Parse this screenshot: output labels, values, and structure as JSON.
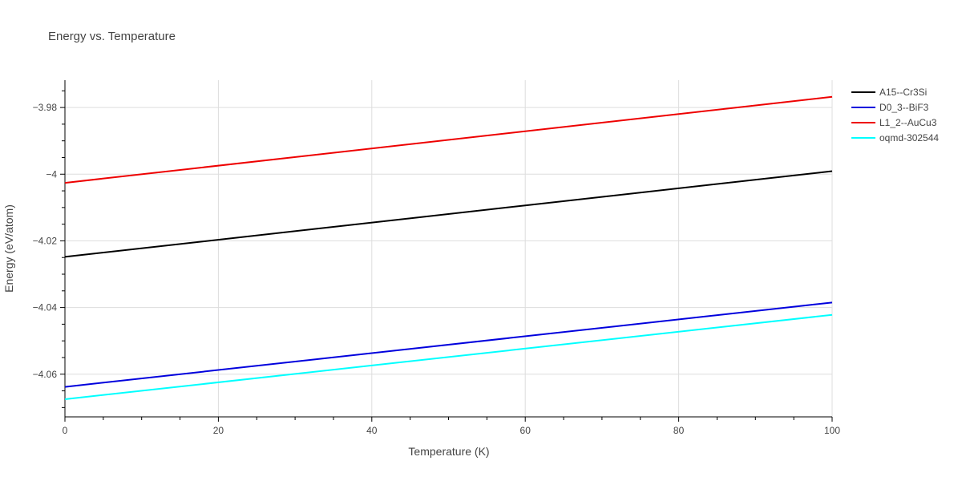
{
  "chart_data": {
    "type": "line",
    "title": "Energy vs. Temperature",
    "xlabel": "Temperature (K)",
    "ylabel": "Energy (eV/atom)",
    "xlim": [
      0,
      100
    ],
    "ylim": [
      -4.0728,
      -3.9718
    ],
    "x_ticks": [
      0,
      20,
      40,
      60,
      80,
      100
    ],
    "x_tick_labels": [
      "0",
      "20",
      "40",
      "60",
      "80",
      "100"
    ],
    "y_ticks": [
      -3.98,
      -4.0,
      -4.02,
      -4.04,
      -4.06
    ],
    "y_tick_labels": [
      "−3.98",
      "−4",
      "−4.02",
      "−4.04",
      "−4.06"
    ],
    "grid": true,
    "legend_position": "top-right",
    "series": [
      {
        "name": "A15--Cr3Si",
        "color": "#000000",
        "x": [
          0,
          100
        ],
        "y": [
          -4.0248,
          -3.9991
        ]
      },
      {
        "name": "D0_3--BiF3",
        "color": "#0000dd",
        "x": [
          0,
          100
        ],
        "y": [
          -4.0638,
          -4.0385
        ]
      },
      {
        "name": "L1_2--AuCu3",
        "color": "#ee0000",
        "x": [
          0,
          100
        ],
        "y": [
          -4.0026,
          -3.9768
        ]
      },
      {
        "name": "oqmd-302544",
        "color": "#00ffff",
        "x": [
          0,
          100
        ],
        "y": [
          -4.0675,
          -4.0422
        ]
      }
    ]
  }
}
